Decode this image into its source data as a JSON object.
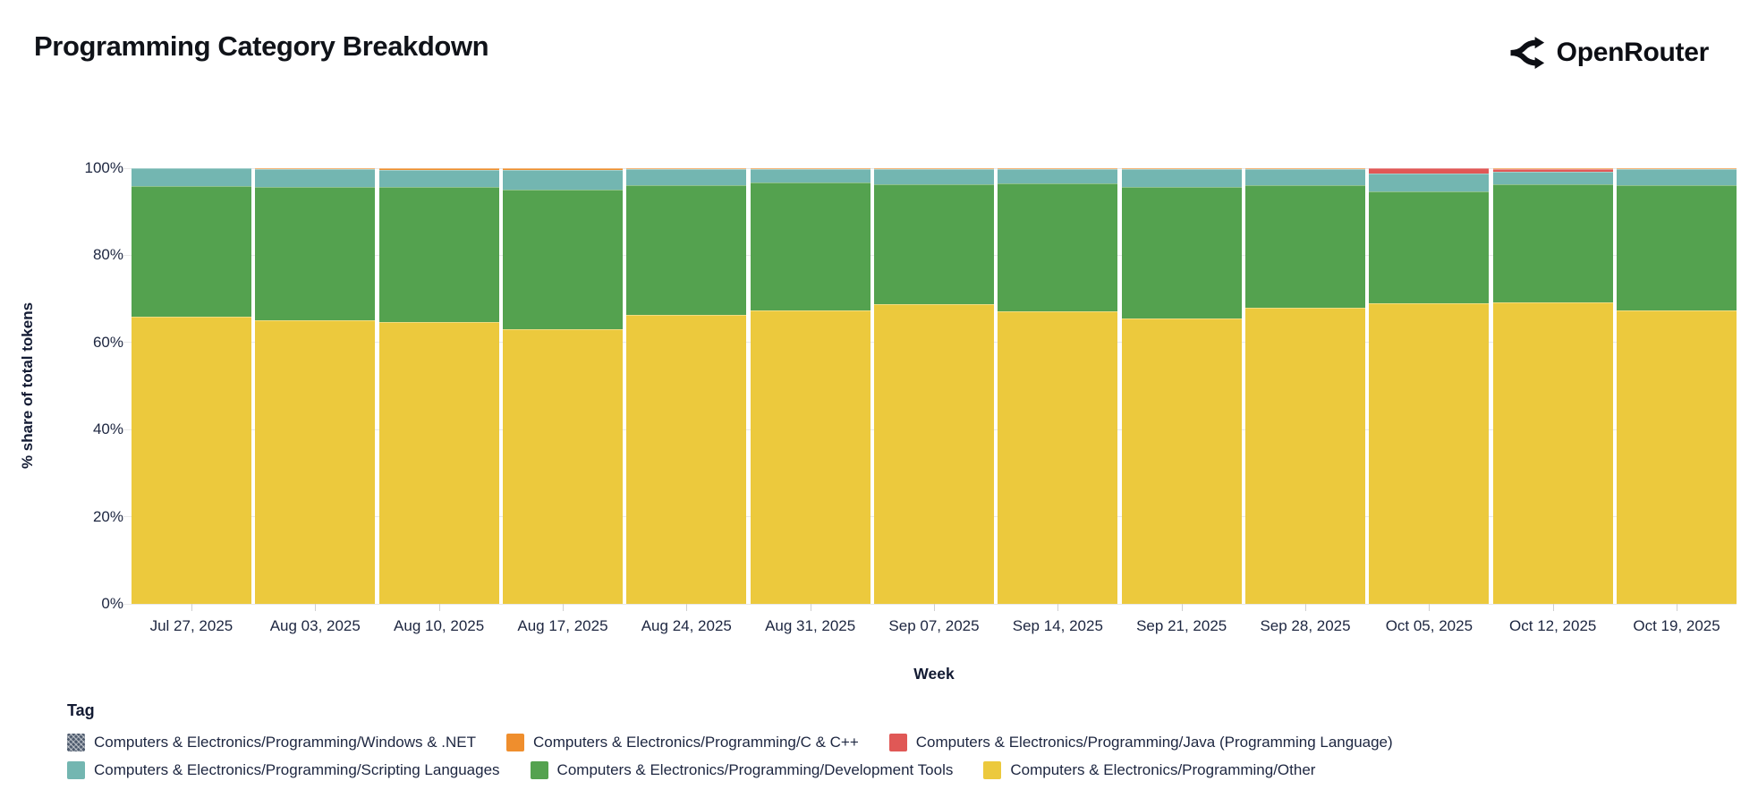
{
  "header": {
    "title": "Programming Category Breakdown",
    "brand": "OpenRouter"
  },
  "chart_data": {
    "type": "bar",
    "stacked": true,
    "normalized_percent": true,
    "title": "Programming Category Breakdown",
    "xlabel": "Week",
    "ylabel": "% share of total tokens",
    "ylim": [
      0,
      100
    ],
    "yticks": [
      0,
      20,
      40,
      60,
      80,
      100
    ],
    "ytick_labels": [
      "0%",
      "20%",
      "40%",
      "60%",
      "80%",
      "100%"
    ],
    "grid": "horizontal-faint",
    "legend_position": "bottom",
    "categories": [
      "Jul 27, 2025",
      "Aug 03, 2025",
      "Aug 10, 2025",
      "Aug 17, 2025",
      "Aug 24, 2025",
      "Aug 31, 2025",
      "Sep 07, 2025",
      "Sep 14, 2025",
      "Sep 21, 2025",
      "Sep 28, 2025",
      "Oct 05, 2025",
      "Oct 12, 2025",
      "Oct 19, 2025"
    ],
    "series": [
      {
        "name": "Computers & Electronics/Programming/Other",
        "color": "#ecc93d",
        "values": [
          66.0,
          65.0,
          64.7,
          63.0,
          66.3,
          67.3,
          68.8,
          67.1,
          65.5,
          68.0,
          69.0,
          69.1,
          67.3
        ]
      },
      {
        "name": "Computers & Electronics/Programming/Development Tools",
        "color": "#54a24f",
        "values": [
          29.9,
          30.7,
          31.0,
          32.1,
          29.9,
          29.4,
          27.5,
          29.5,
          30.2,
          28.2,
          25.7,
          27.3,
          28.9
        ]
      },
      {
        "name": "Computers & Electronics/Programming/Scripting Languages",
        "color": "#73b6b1",
        "values": [
          4.1,
          4.0,
          3.9,
          4.5,
          3.5,
          3.0,
          3.4,
          3.1,
          4.0,
          3.5,
          4.0,
          2.7,
          3.5
        ]
      },
      {
        "name": "Computers & Electronics/Programming/Java (Programming Language)",
        "color": "#e05856",
        "values": [
          0,
          0,
          0,
          0,
          0,
          0,
          0,
          0,
          0,
          0,
          1.3,
          0.7,
          0
        ]
      },
      {
        "name": "Computers & Electronics/Programming/C & C++",
        "color": "#ef8e2d",
        "values": [
          0,
          0.3,
          0.4,
          0.4,
          0.3,
          0.3,
          0.3,
          0.3,
          0.3,
          0.3,
          0,
          0.2,
          0.3
        ]
      },
      {
        "name": "Computers & Electronics/Programming/Windows & .NET",
        "color": "#4b586b",
        "values": [
          0,
          0,
          0,
          0,
          0,
          0,
          0,
          0,
          0,
          0,
          0,
          0,
          0
        ]
      }
    ]
  },
  "legend": {
    "title": "Tag",
    "rows": [
      [
        {
          "label": "Computers & Electronics/Programming/Windows & .NET",
          "color": "#4b586b",
          "pattern": true
        },
        {
          "label": "Computers & Electronics/Programming/C & C++",
          "color": "#ef8e2d",
          "pattern": false
        },
        {
          "label": "Computers & Electronics/Programming/Java (Programming Language)",
          "color": "#e05856",
          "pattern": false
        }
      ],
      [
        {
          "label": "Computers & Electronics/Programming/Scripting Languages",
          "color": "#73b6b1",
          "pattern": false
        },
        {
          "label": "Computers & Electronics/Programming/Development Tools",
          "color": "#54a24f",
          "pattern": false
        },
        {
          "label": "Computers & Electronics/Programming/Other",
          "color": "#ecc93d",
          "pattern": false
        }
      ]
    ]
  }
}
